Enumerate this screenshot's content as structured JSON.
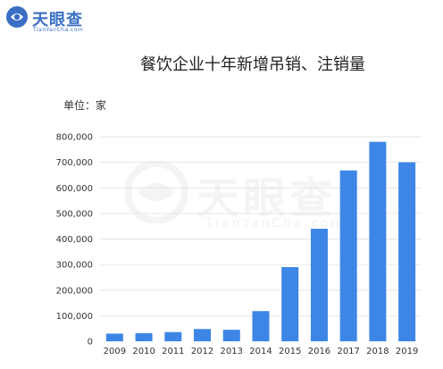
{
  "logo": {
    "name": "天眼查",
    "sub": "TianYanCha.com",
    "icon": "tianyancha-logo-icon",
    "color": "#3a6fc4"
  },
  "watermark": {
    "name": "天眼查",
    "sub": "TianYanCha.com"
  },
  "chart_data": {
    "type": "bar",
    "title": "餐饮企业十年新增吊销、注销量",
    "unit_label": "单位：家",
    "categories": [
      "2009",
      "2010",
      "2011",
      "2012",
      "2013",
      "2014",
      "2015",
      "2016",
      "2017",
      "2018",
      "2019"
    ],
    "values": [
      30000,
      32000,
      36000,
      48000,
      45000,
      118000,
      290000,
      440000,
      668000,
      780000,
      700000
    ],
    "ylim": [
      0,
      800000
    ],
    "yticks": [
      0,
      100000,
      200000,
      300000,
      400000,
      500000,
      600000,
      700000,
      800000
    ],
    "ytick_labels": [
      "0",
      "100,000",
      "200,000",
      "300,000",
      "400,000",
      "500,000",
      "600,000",
      "700,000",
      "800,000"
    ],
    "grid": true,
    "legend": false,
    "bar_color": "#3d86e6",
    "grid_color": "#e6e6e6"
  }
}
